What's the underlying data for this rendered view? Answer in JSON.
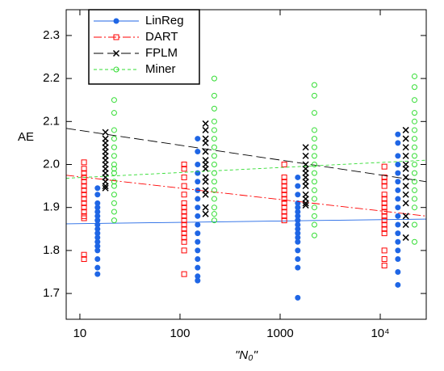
{
  "chart_data": {
    "type": "scatter",
    "x_label": "\"N₀\"",
    "y_label": "AE",
    "log_x": true,
    "xlim": [
      7.3,
      28800
    ],
    "ylim": [
      1.64,
      2.36
    ],
    "xticks": [
      10,
      100,
      1000,
      {
        "value": 10000,
        "label": "10⁴"
      }
    ],
    "yticks": [
      1.7,
      1.8,
      1.9,
      {
        "value": 2.0,
        "label": "2.0"
      },
      2.1,
      2.2,
      2.3
    ],
    "legend": "upper left",
    "series": [
      {
        "name": "LinReg",
        "color": "#1f66e5",
        "marker": "dot",
        "line": "solid",
        "fit_x": [
          7.3,
          28800
        ],
        "fit_y": [
          1.862,
          1.873
        ],
        "groups": [
          {
            "x": 15,
            "values": [
              1.945,
              1.93,
              1.91,
              1.9,
              1.89,
              1.88,
              1.87,
              1.86,
              1.85,
              1.84,
              1.83,
              1.82,
              1.81,
              1.8,
              1.78,
              1.76,
              1.745
            ]
          },
          {
            "x": 150,
            "values": [
              2.06,
              2.03,
              2.0,
              1.98,
              1.96,
              1.94,
              1.92,
              1.9,
              1.88,
              1.86,
              1.84,
              1.82,
              1.8,
              1.78,
              1.76,
              1.74,
              1.73
            ]
          },
          {
            "x": 1500,
            "values": [
              1.97,
              1.95,
              1.93,
              1.91,
              1.9,
              1.89,
              1.88,
              1.87,
              1.86,
              1.85,
              1.84,
              1.83,
              1.82,
              1.8,
              1.78,
              1.76,
              1.69
            ]
          },
          {
            "x": 15000,
            "values": [
              2.07,
              2.05,
              2.02,
              2.0,
              1.98,
              1.96,
              1.94,
              1.92,
              1.9,
              1.88,
              1.86,
              1.84,
              1.82,
              1.8,
              1.78,
              1.75,
              1.72
            ]
          }
        ]
      },
      {
        "name": "DART",
        "color": "#ff0000",
        "marker": "square",
        "line": "dashdot",
        "fit_x": [
          7.3,
          28800
        ],
        "fit_y": [
          1.975,
          1.88
        ],
        "groups": [
          {
            "x": 11,
            "values": [
              2.005,
              1.99,
              1.98,
              1.97,
              1.96,
              1.95,
              1.94,
              1.93,
              1.92,
              1.91,
              1.9,
              1.89,
              1.88,
              1.875,
              1.79,
              1.78
            ]
          },
          {
            "x": 110,
            "values": [
              2.0,
              1.99,
              1.97,
              1.95,
              1.93,
              1.91,
              1.9,
              1.89,
              1.88,
              1.87,
              1.86,
              1.85,
              1.84,
              1.83,
              1.82,
              1.8,
              1.745
            ]
          },
          {
            "x": 1100,
            "values": [
              2.0,
              1.97,
              1.96,
              1.95,
              1.94,
              1.93,
              1.92,
              1.91,
              1.9,
              1.89,
              1.88,
              1.87
            ]
          },
          {
            "x": 11000,
            "values": [
              1.995,
              1.97,
              1.96,
              1.95,
              1.93,
              1.92,
              1.91,
              1.9,
              1.89,
              1.88,
              1.87,
              1.86,
              1.85,
              1.84,
              1.8,
              1.78,
              1.765
            ]
          }
        ]
      },
      {
        "name": "FPLM",
        "color": "#000000",
        "marker": "cross",
        "line": "dashed",
        "fit_x": [
          7.3,
          28800
        ],
        "fit_y": [
          2.084,
          1.96
        ],
        "groups": [
          {
            "x": 18,
            "values": [
              2.075,
              2.06,
              2.05,
              2.04,
              2.03,
              2.02,
              2.01,
              2.0,
              1.99,
              1.98,
              1.97,
              1.96,
              1.95,
              1.945
            ]
          },
          {
            "x": 180,
            "values": [
              2.095,
              2.08,
              2.06,
              2.05,
              2.03,
              2.01,
              2.0,
              1.99,
              1.97,
              1.96,
              1.94,
              1.93,
              1.9,
              1.885
            ]
          },
          {
            "x": 1800,
            "values": [
              2.04,
              2.02,
              2.0,
              1.99,
              1.98,
              1.97,
              1.96,
              1.95,
              1.93,
              1.92,
              1.91,
              1.905
            ]
          },
          {
            "x": 18000,
            "values": [
              2.08,
              2.06,
              2.04,
              2.02,
              2.0,
              1.99,
              1.97,
              1.95,
              1.93,
              1.91,
              1.88,
              1.86,
              1.83
            ]
          }
        ]
      },
      {
        "name": "Miner",
        "color": "#33dd33",
        "marker": "circle",
        "line": "dotted",
        "fit_x": [
          7.3,
          28800
        ],
        "fit_y": [
          1.968,
          2.01
        ],
        "groups": [
          {
            "x": 22,
            "values": [
              2.15,
              2.12,
              2.08,
              2.06,
              2.04,
              2.02,
              2.0,
              1.99,
              1.98,
              1.96,
              1.95,
              1.93,
              1.91,
              1.89,
              1.87
            ]
          },
          {
            "x": 220,
            "values": [
              2.2,
              2.16,
              2.13,
              2.1,
              2.08,
              2.06,
              2.04,
              2.02,
              2.0,
              1.98,
              1.96,
              1.94,
              1.92,
              1.9,
              1.885,
              1.87
            ]
          },
          {
            "x": 2200,
            "values": [
              2.185,
              2.16,
              2.12,
              2.08,
              2.06,
              2.04,
              2.02,
              2.0,
              1.98,
              1.96,
              1.94,
              1.92,
              1.9,
              1.88,
              1.86,
              1.835
            ]
          },
          {
            "x": 22000,
            "values": [
              2.205,
              2.18,
              2.15,
              2.12,
              2.1,
              2.08,
              2.06,
              2.04,
              2.02,
              2.0,
              1.98,
              1.96,
              1.94,
              1.92,
              1.9,
              1.86,
              1.82
            ]
          }
        ]
      }
    ]
  }
}
